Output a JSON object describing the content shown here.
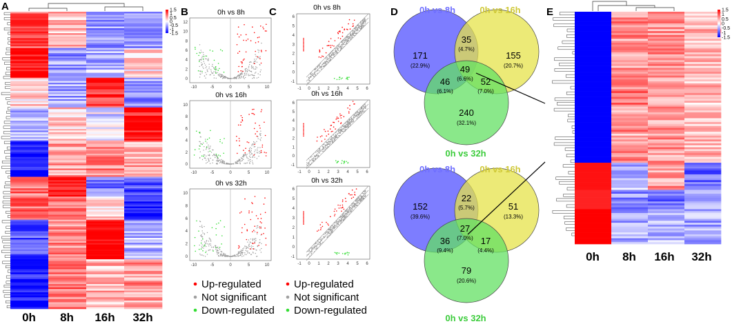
{
  "figure": {
    "panels": {
      "A": {
        "letter": "A",
        "columns": [
          "0h",
          "8h",
          "16h",
          "32h"
        ],
        "colorbar": {
          "ticks": [
            "1.5",
            "1",
            "0.5",
            "0",
            "-0.5",
            "-1",
            "-1.5"
          ],
          "high": "#ff0000",
          "mid": "#ffffff",
          "low": "#0000ff"
        }
      },
      "B": {
        "letter": "B",
        "plots": [
          {
            "title": "0h vs 8h",
            "xticks": [
              "-10",
              "-5",
              "0",
              "5",
              "10"
            ],
            "yticks": [
              "0",
              "2",
              "4",
              "6",
              "8",
              "10",
              "12"
            ]
          },
          {
            "title": "0h vs 16h",
            "xticks": [
              "-10",
              "-5",
              "0",
              "5",
              "10"
            ],
            "yticks": [
              "0",
              "2",
              "4",
              "6",
              "8",
              "10"
            ]
          },
          {
            "title": "0h vs 32h",
            "xticks": [
              "-10",
              "-5",
              "0",
              "5",
              "10"
            ],
            "yticks": [
              "0",
              "2",
              "4",
              "6",
              "8",
              "10"
            ]
          }
        ]
      },
      "C": {
        "letter": "C",
        "plots": [
          {
            "title": "0h vs 8h",
            "xticks": [
              "-1",
              "0",
              "1",
              "2",
              "3",
              "4",
              "5",
              "6"
            ],
            "yticks": [
              "-1",
              "0",
              "1",
              "2",
              "3",
              "4",
              "5",
              "6"
            ]
          },
          {
            "title": "0h vs 16h",
            "xticks": [
              "-1",
              "0",
              "1",
              "2",
              "3",
              "4",
              "5",
              "6"
            ],
            "yticks": [
              "-1",
              "0",
              "1",
              "2",
              "3",
              "4",
              "5",
              "6"
            ]
          },
          {
            "title": "0h vs 32h",
            "xticks": [
              "-1",
              "0",
              "1",
              "2",
              "3",
              "4",
              "5",
              "6"
            ],
            "yticks": [
              "-1",
              "0",
              "1",
              "2",
              "3",
              "4",
              "5",
              "6"
            ]
          }
        ]
      },
      "D": {
        "letter": "D",
        "set_names": {
          "a": "0h vs 8h",
          "b": "0h vs 16h",
          "c": "0h vs 32h"
        },
        "set_colors": {
          "a": "#6f6fff",
          "b": "#e6e34a",
          "c": "#63e063"
        },
        "venn_top": {
          "a_only": {
            "n": "171",
            "p": "(22.9%)"
          },
          "ab": {
            "n": "35",
            "p": "(4.7%)"
          },
          "b_only": {
            "n": "155",
            "p": "(20.7%)"
          },
          "abc": {
            "n": "49",
            "p": "(6.6%)"
          },
          "ac": {
            "n": "46",
            "p": "(6.1%)"
          },
          "bc": {
            "n": "52",
            "p": "(7.0%)"
          },
          "c_only": {
            "n": "240",
            "p": "(32.1%)"
          }
        },
        "venn_bottom": {
          "a_only": {
            "n": "152",
            "p": "(39.6%)"
          },
          "ab": {
            "n": "22",
            "p": "(5.7%)"
          },
          "b_only": {
            "n": "51",
            "p": "(13.3%)"
          },
          "abc": {
            "n": "27",
            "p": "(7.0%)"
          },
          "ac": {
            "n": "36",
            "p": "(9.4%)"
          },
          "bc": {
            "n": "17",
            "p": "(4.4%)"
          },
          "c_only": {
            "n": "79",
            "p": "(20.6%)"
          }
        }
      },
      "E": {
        "letter": "E",
        "columns": [
          "0h",
          "8h",
          "16h",
          "32h"
        ],
        "colorbar": {
          "ticks": [
            "1.5",
            "1",
            "0.5",
            "0",
            "-0.5",
            "-1",
            "-1.5"
          ]
        }
      }
    },
    "legend": {
      "items": [
        {
          "label": "Up-regulated",
          "color": "#ff0000"
        },
        {
          "label": "Not significant",
          "color": "#a0a0a0"
        },
        {
          "label": "Down-regulated",
          "color": "#33dd33"
        }
      ]
    }
  }
}
